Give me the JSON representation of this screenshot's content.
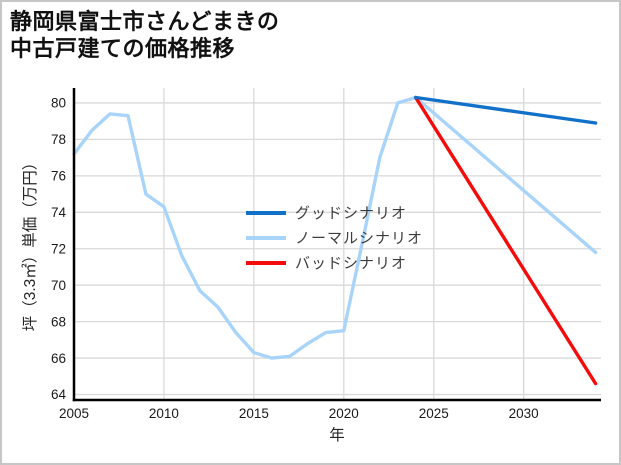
{
  "figure": {
    "title_lines": [
      "静岡県富士市さんどまきの",
      "中古戸建ての価格推移"
    ],
    "background": "#ffffff",
    "border_color": "#c6c6c6"
  },
  "chart_data": {
    "type": "line",
    "title": "静岡県富士市さんどまきの中古戸建ての価格推移",
    "xlabel": "年",
    "ylabel": "坪（3.3㎡）単価（万円）",
    "xlim": [
      2005,
      2034.3
    ],
    "ylim": [
      63.7,
      80.82
    ],
    "x_ticks": [
      2005,
      2010,
      2015,
      2020,
      2025,
      2030
    ],
    "y_ticks": [
      64,
      66,
      68,
      70,
      72,
      74,
      76,
      78,
      80
    ],
    "grid": true,
    "grid_color": "#d9d9d9",
    "spine_color": "#000000",
    "tick_label_color": "#1a1a1a",
    "legend_position": "center-left inside plot",
    "series": [
      {
        "name": "グッドシナリオ",
        "color": "#1170c8",
        "x": [
          2024,
          2034
        ],
        "values": [
          80.3,
          78.9
        ]
      },
      {
        "name": "ノーマルシナリオ",
        "color": "#a9d4f9",
        "x": [
          2005,
          2006,
          2007,
          2008,
          2009,
          2010,
          2011,
          2012,
          2013,
          2014,
          2015,
          2016,
          2017,
          2018,
          2019,
          2020,
          2021,
          2022,
          2023,
          2024,
          2034
        ],
        "values": [
          77.2,
          78.5,
          79.4,
          79.3,
          75.0,
          74.3,
          71.6,
          69.7,
          68.8,
          67.4,
          66.3,
          66.0,
          66.1,
          66.8,
          67.4,
          67.5,
          72.2,
          77.0,
          80.0,
          80.3,
          71.8
        ]
      },
      {
        "name": "バッドシナリオ",
        "color": "#f40b0b",
        "x": [
          2024,
          2034
        ],
        "values": [
          80.3,
          64.6
        ]
      }
    ]
  }
}
